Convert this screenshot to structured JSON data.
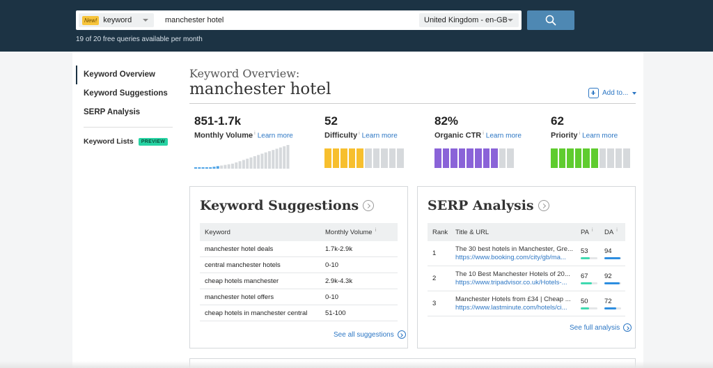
{
  "search": {
    "new_badge": "New!",
    "type": "keyword",
    "query": "manchester hotel",
    "locale": "United Kingdom - en-GB",
    "quota": "19 of 20 free queries available per month"
  },
  "sidebar": {
    "items": [
      {
        "label": "Keyword Overview"
      },
      {
        "label": "Keyword Suggestions"
      },
      {
        "label": "SERP Analysis"
      }
    ],
    "lists_label": "Keyword Lists",
    "preview_badge": "PREVIEW"
  },
  "overview": {
    "label": "Keyword Overview:",
    "query": "manchester hotel",
    "add_to": "Add to..."
  },
  "metrics": [
    {
      "value": "851-1.7k",
      "label": "Monthly Volume",
      "info": "i",
      "learn": "Learn more",
      "bars": [
        1,
        1,
        1,
        1,
        2,
        3,
        4,
        5,
        6,
        7,
        8,
        10,
        12,
        14,
        16,
        18,
        20,
        22,
        24,
        26,
        28,
        30,
        32,
        34,
        36,
        38
      ]
    },
    {
      "value": "52",
      "label": "Difficulty",
      "info": "i",
      "learn": "Learn more",
      "filled": 5,
      "total": 10,
      "color": "#f7bf2e"
    },
    {
      "value": "82%",
      "label": "Organic CTR",
      "info": "i",
      "learn": "Learn more",
      "filled": 8,
      "total": 10,
      "color": "#8a63d8"
    },
    {
      "value": "62",
      "label": "Priority",
      "info": "i",
      "learn": "Learn more",
      "filled": 6,
      "total": 10,
      "color": "#5fcc2e"
    }
  ],
  "suggestions": {
    "title": "Keyword Suggestions",
    "col_keyword": "Keyword",
    "col_volume": "Monthly Volume",
    "info": "i",
    "rows": [
      {
        "keyword": "manchester hotel deals",
        "volume": "1.7k-2.9k"
      },
      {
        "keyword": "central manchester hotels",
        "volume": "0-10"
      },
      {
        "keyword": "cheap hotels manchester",
        "volume": "2.9k-4.3k"
      },
      {
        "keyword": "manchester hotel offers",
        "volume": "0-10"
      },
      {
        "keyword": "cheap hotels in manchester central",
        "volume": "51-100"
      }
    ],
    "see_all": "See all suggestions"
  },
  "serp": {
    "title": "SERP Analysis",
    "col_rank": "Rank",
    "col_title": "Title & URL",
    "col_pa": "PA",
    "col_da": "DA",
    "info": "i",
    "rows": [
      {
        "rank": "1",
        "title": "The 30 best hotels in Manchester, Gre...",
        "url": "https://www.booking.com/city/gb/ma...",
        "pa": "53",
        "da": "94"
      },
      {
        "rank": "2",
        "title": "The 10 Best Manchester Hotels of 20...",
        "url": "https://www.tripadvisor.co.uk/Hotels-...",
        "pa": "67",
        "da": "92"
      },
      {
        "rank": "3",
        "title": "Manchester Hotels from £34 | Cheap ...",
        "url": "https://www.lastminute.com/hotels/ci...",
        "pa": "50",
        "da": "72"
      }
    ],
    "see_full": "See full analysis",
    "pa_color": "#3fd9b0",
    "da_color": "#2d8ee0"
  }
}
